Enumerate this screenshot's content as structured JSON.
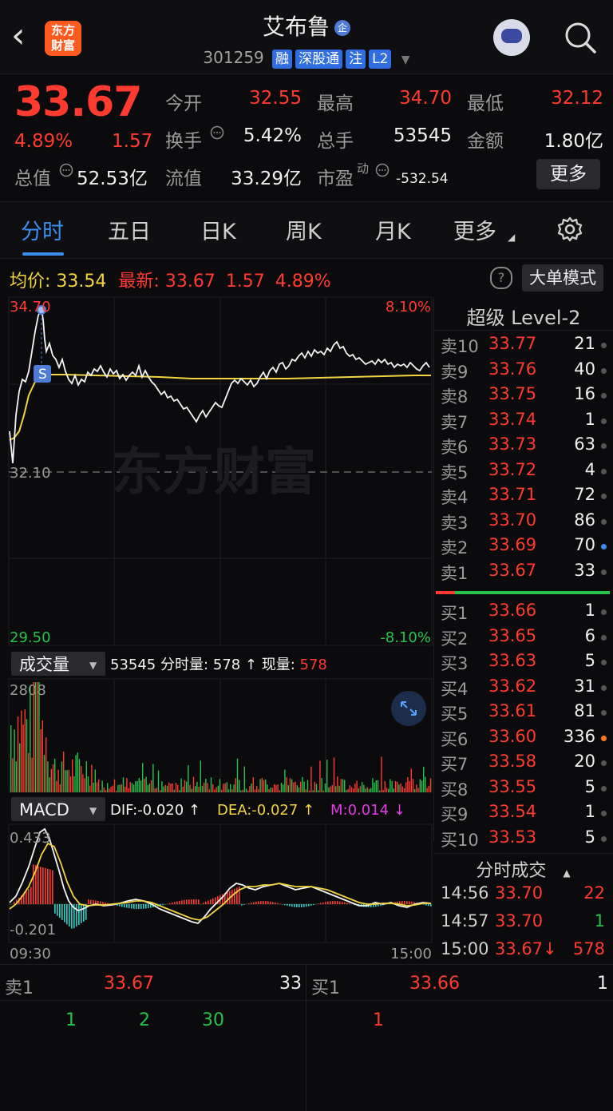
{
  "header": {
    "stock_name": "艾布鲁",
    "qi_badge": "企",
    "code": "301259",
    "tags": [
      "融",
      "深股通",
      "注",
      "L2"
    ],
    "logo_text_1": "东方",
    "logo_text_2": "财富",
    "back_icon": "‹"
  },
  "quote": {
    "price": "33.67",
    "change_pct": "4.89%",
    "change": "1.57",
    "open_label": "今开",
    "open": "32.55",
    "high_label": "最高",
    "high": "34.70",
    "low_label": "最低",
    "low": "32.12",
    "turnover_label": "换手",
    "turnover": "5.42%",
    "volume_label": "总手",
    "volume": "53545",
    "amount_label": "金额",
    "amount": "1.80亿",
    "mktcap_label": "总值",
    "mktcap": "52.53亿",
    "float_label": "流值",
    "float": "33.29亿",
    "pe_label": "市盈",
    "pe_sup": "动",
    "pe": "-532.54",
    "more": "更多"
  },
  "tabs": [
    "分时",
    "五日",
    "日K",
    "周K",
    "月K",
    "更多"
  ],
  "avg_row": {
    "avg_label": "均价:",
    "avg": "33.54",
    "latest_label": "最新:",
    "latest": "33.67",
    "latest_chg": "1.57",
    "latest_pct": "4.89%",
    "help": "?",
    "big_order_mode": "大单模式"
  },
  "chart_labels": {
    "top_price": "34.70",
    "top_pct": "8.10%",
    "mid_price": "32.10",
    "bottom_price": "29.50",
    "bottom_pct": "-8.10%",
    "s_marker": "S",
    "watermark": "东方财富",
    "vol_selector": "成交量",
    "vol_total": "53545",
    "vol_info_label": "分时量:",
    "vol_info_val": "578",
    "vol_now_label": "现量:",
    "vol_now": "578",
    "vol_max": "2808",
    "macd_selector": "MACD",
    "dif": "DIF:-0.020 ↑",
    "dea": "DEA:-0.027 ↑",
    "m": "M:0.014 ↓",
    "macd_top": "0.433",
    "macd_bottom": "-0.201",
    "time_start": "09:30",
    "time_end": "15:00"
  },
  "orderbook": {
    "title": "超级 Level-2",
    "asks": [
      {
        "label": "卖10",
        "price": "33.77",
        "vol": "21"
      },
      {
        "label": "卖9",
        "price": "33.76",
        "vol": "40"
      },
      {
        "label": "卖8",
        "price": "33.75",
        "vol": "16"
      },
      {
        "label": "卖7",
        "price": "33.74",
        "vol": "1"
      },
      {
        "label": "卖6",
        "price": "33.73",
        "vol": "63"
      },
      {
        "label": "卖5",
        "price": "33.72",
        "vol": "4"
      },
      {
        "label": "卖4",
        "price": "33.71",
        "vol": "72"
      },
      {
        "label": "卖3",
        "price": "33.70",
        "vol": "86"
      },
      {
        "label": "卖2",
        "price": "33.69",
        "vol": "70"
      },
      {
        "label": "卖1",
        "price": "33.67",
        "vol": "33"
      }
    ],
    "bids": [
      {
        "label": "买1",
        "price": "33.66",
        "vol": "1"
      },
      {
        "label": "买2",
        "price": "33.65",
        "vol": "6"
      },
      {
        "label": "买3",
        "price": "33.63",
        "vol": "5"
      },
      {
        "label": "买4",
        "price": "33.62",
        "vol": "31"
      },
      {
        "label": "买5",
        "price": "33.61",
        "vol": "81"
      },
      {
        "label": "买6",
        "price": "33.60",
        "vol": "336"
      },
      {
        "label": "买7",
        "price": "33.58",
        "vol": "20"
      },
      {
        "label": "买8",
        "price": "33.55",
        "vol": "5"
      },
      {
        "label": "买9",
        "price": "33.54",
        "vol": "1"
      },
      {
        "label": "买10",
        "price": "33.53",
        "vol": "5"
      }
    ],
    "trades_title": "分时成交",
    "trades": [
      {
        "time": "14:56",
        "price": "33.70",
        "vol": "22"
      },
      {
        "time": "14:57",
        "price": "33.70",
        "vol": "1"
      },
      {
        "time": "15:00",
        "price": "33.67↓",
        "vol": "578"
      }
    ]
  },
  "bottom": {
    "ask_label": "卖1",
    "ask_price": "33.67",
    "ask_vol": "33",
    "bid_label": "买1",
    "bid_price": "33.66",
    "bid_vol": "1",
    "ask_queue": [
      "1",
      "2",
      "30"
    ],
    "bid_queue": [
      "1"
    ]
  },
  "colors": {
    "up": "#ff3b30",
    "down": "#27c24c",
    "avg": "#f2d340",
    "accent": "#3d8cf0"
  }
}
